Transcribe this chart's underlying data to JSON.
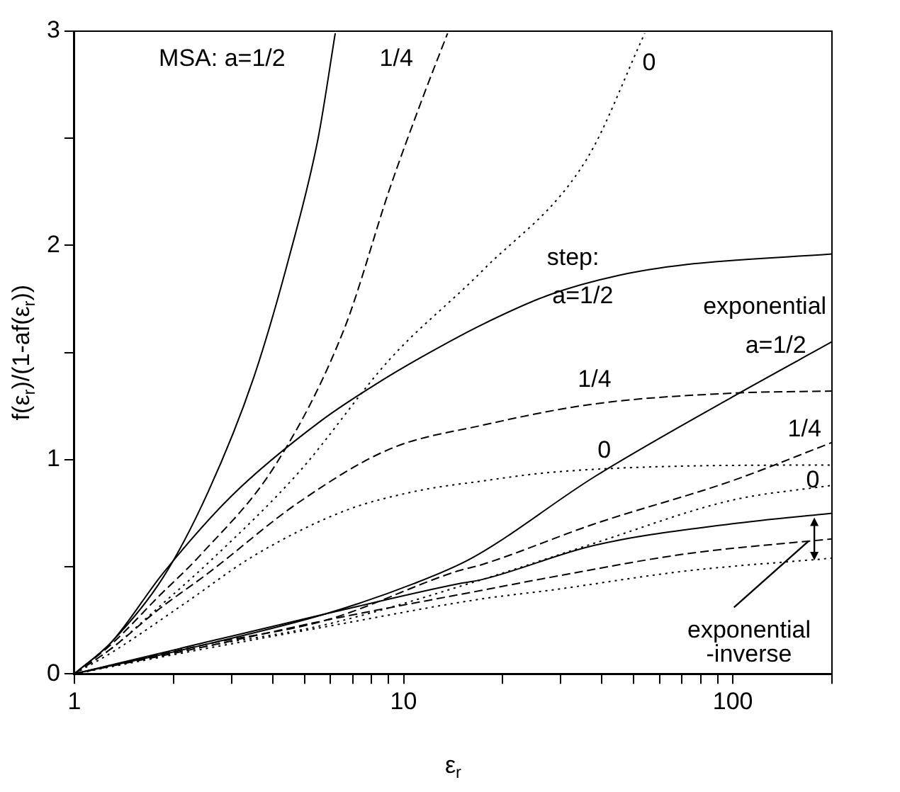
{
  "chart_data": {
    "type": "line",
    "xlabel": "ε$_{r}$",
    "ylabel": "f(ε$_{r}$)/(1-af(ε$_{r}$))",
    "log": "x",
    "xlim": [
      1,
      200
    ],
    "ylim": [
      0,
      3
    ],
    "xticks": [
      1,
      {
        "value": 2,
        "label": null
      },
      {
        "value": 3,
        "label": null
      },
      {
        "value": 4,
        "label": null
      },
      {
        "value": 5,
        "label": null
      },
      {
        "value": 6,
        "label": null
      },
      {
        "value": 7,
        "label": null
      },
      {
        "value": 8,
        "label": null
      },
      {
        "value": 9,
        "label": null
      },
      10,
      {
        "value": 20,
        "label": null
      },
      {
        "value": 30,
        "label": null
      },
      {
        "value": 40,
        "label": null
      },
      {
        "value": 50,
        "label": null
      },
      {
        "value": 60,
        "label": null
      },
      {
        "value": 70,
        "label": null
      },
      {
        "value": 80,
        "label": null
      },
      {
        "value": 90,
        "label": null
      },
      100,
      {
        "value": 200,
        "label": null
      }
    ],
    "yticks": [
      0,
      {
        "value": 0.5,
        "label": null
      },
      1,
      {
        "value": 1.5,
        "label": null
      },
      2,
      {
        "value": 2.5,
        "label": null
      },
      3
    ],
    "grid": false,
    "legend": false,
    "marker": "none",
    "series": [
      {
        "color": "#000000",
        "line_style": "solid",
        "x": [
          1,
          1.3,
          1.86,
          2.55,
          3.5,
          4.5,
          5.5,
          6.2
        ],
        "values": [
          0,
          0.15,
          0.45,
          0.85,
          1.38,
          1.95,
          2.5,
          2.99
        ]
      },
      {
        "color": "#000000",
        "line_style": "dashed",
        "x": [
          1,
          1.3,
          1.8,
          2.4,
          4.1,
          6.6,
          9.1,
          11.5,
          13.6
        ],
        "values": [
          0,
          0.14,
          0.36,
          0.55,
          0.98,
          1.61,
          2.27,
          2.7,
          2.99
        ]
      },
      {
        "color": "#000000",
        "line_style": "dotted",
        "x": [
          1,
          1.3,
          1.8,
          2.6,
          4.8,
          9.1,
          17.3,
          35.9,
          54
        ],
        "values": [
          0,
          0.12,
          0.31,
          0.53,
          0.94,
          1.47,
          1.88,
          2.4,
          2.99
        ]
      },
      {
        "color": "#000000",
        "line_style": "solid",
        "x": [
          1,
          1.3,
          1.86,
          3,
          5.6,
          8.6,
          12,
          17.3,
          27.8,
          45,
          72,
          200
        ],
        "values": [
          0,
          0.15,
          0.47,
          0.83,
          1.18,
          1.37,
          1.5,
          1.63,
          1.77,
          1.86,
          1.91,
          1.96
        ]
      },
      {
        "color": "#000000",
        "line_style": "dashed",
        "x": [
          1,
          1.3,
          1.8,
          2.55,
          4.8,
          9.1,
          17.3,
          38,
          99,
          200
        ],
        "values": [
          0,
          0.12,
          0.3,
          0.47,
          0.8,
          1.05,
          1.16,
          1.26,
          1.31,
          1.32
        ]
      },
      {
        "color": "#000000",
        "line_style": "dotted",
        "x": [
          1,
          1.3,
          2.17,
          3.5,
          6.6,
          10.7,
          17.3,
          27.8,
          72,
          200
        ],
        "values": [
          0,
          0.1,
          0.33,
          0.55,
          0.76,
          0.85,
          0.9,
          0.94,
          0.97,
          0.975
        ]
      },
      {
        "color": "#000000",
        "line_style": "solid",
        "x": [
          1,
          2.55,
          5.8,
          10.7,
          16.1,
          38,
          99,
          200
        ],
        "values": [
          0,
          0.14,
          0.28,
          0.42,
          0.54,
          0.92,
          1.29,
          1.55
        ]
      },
      {
        "color": "#000000",
        "line_style": "dashed",
        "x": [
          1,
          2.55,
          5.8,
          14.6,
          17.3,
          38,
          99,
          200
        ],
        "values": [
          0,
          0.14,
          0.25,
          0.48,
          0.51,
          0.7,
          0.9,
          1.08
        ]
      },
      {
        "color": "#000000",
        "line_style": "dotted",
        "x": [
          1,
          2.55,
          5.8,
          17.3,
          38,
          99,
          200
        ],
        "values": [
          0,
          0.13,
          0.23,
          0.44,
          0.61,
          0.81,
          0.88
        ]
      },
      {
        "color": "#000000",
        "line_style": "solid",
        "x": [
          1,
          2.55,
          5.8,
          14.6,
          17.3,
          38,
          99,
          200
        ],
        "values": [
          0,
          0.15,
          0.28,
          0.42,
          0.44,
          0.6,
          0.7,
          0.75
        ]
      },
      {
        "color": "#000000",
        "line_style": "dashed",
        "x": [
          1,
          2.55,
          5.8,
          17.3,
          27.8,
          72,
          200
        ],
        "values": [
          0,
          0.13,
          0.25,
          0.39,
          0.45,
          0.56,
          0.63
        ]
      },
      {
        "color": "#000000",
        "line_style": "dotted",
        "x": [
          1,
          2.55,
          5.8,
          17.3,
          27.8,
          72,
          200
        ],
        "values": [
          0,
          0.12,
          0.22,
          0.35,
          0.39,
          0.48,
          0.54
        ]
      }
    ],
    "annotations": [
      "MSA: a=1/2",
      "1/4",
      "0",
      "step:",
      "a=1/2",
      "1/4",
      "0",
      "exponential",
      "a=1/2",
      "1/4",
      "0",
      {
        "text": "exponential\n-inverse",
        "x": 170,
        "y": 0.62
      }
    ]
  }
}
